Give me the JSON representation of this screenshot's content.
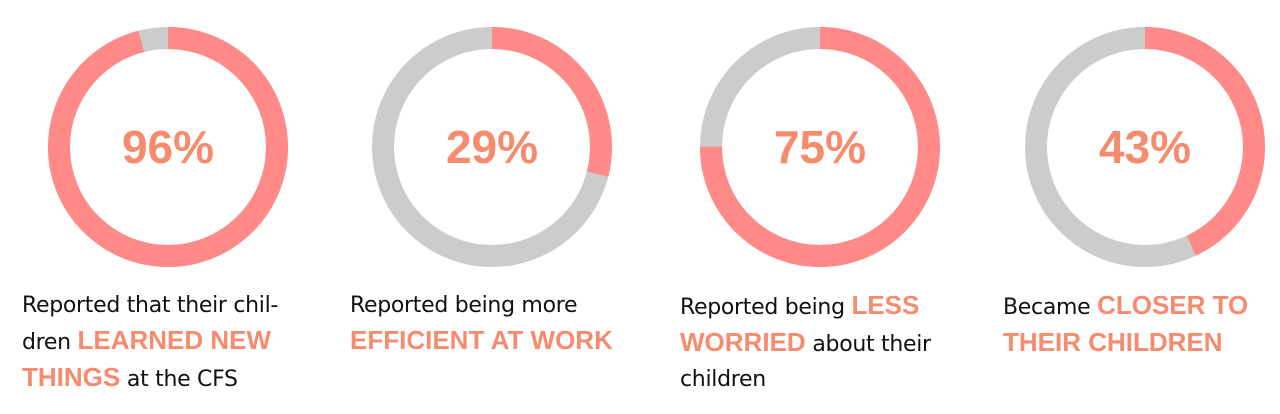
{
  "colors": {
    "filled": "#FF8A87",
    "remainder": "#CCCCCC",
    "highlight": "#F68B6E",
    "text": "#111111"
  },
  "chart_data": {
    "type": "pie",
    "variant": "donut",
    "items": [
      {
        "value": 96,
        "label": "96%",
        "caption": {
          "pre": "Reported that their chil-dren ",
          "highlight": "LEARNED NEW THINGS",
          "post": " at the CFS"
        }
      },
      {
        "value": 29,
        "label": "29%",
        "caption": {
          "pre": "Reported being more ",
          "highlight": "EFFICIENT AT WORK",
          "post": ""
        }
      },
      {
        "value": 75,
        "label": "75%",
        "caption": {
          "pre": "Reported being ",
          "highlight": "LESS WORRIED",
          "post": " about their children"
        }
      },
      {
        "value": 43,
        "label": "43%",
        "caption": {
          "pre": "Became ",
          "highlight": "CLOSER TO THEIR CHILDREN",
          "post": ""
        }
      }
    ]
  }
}
